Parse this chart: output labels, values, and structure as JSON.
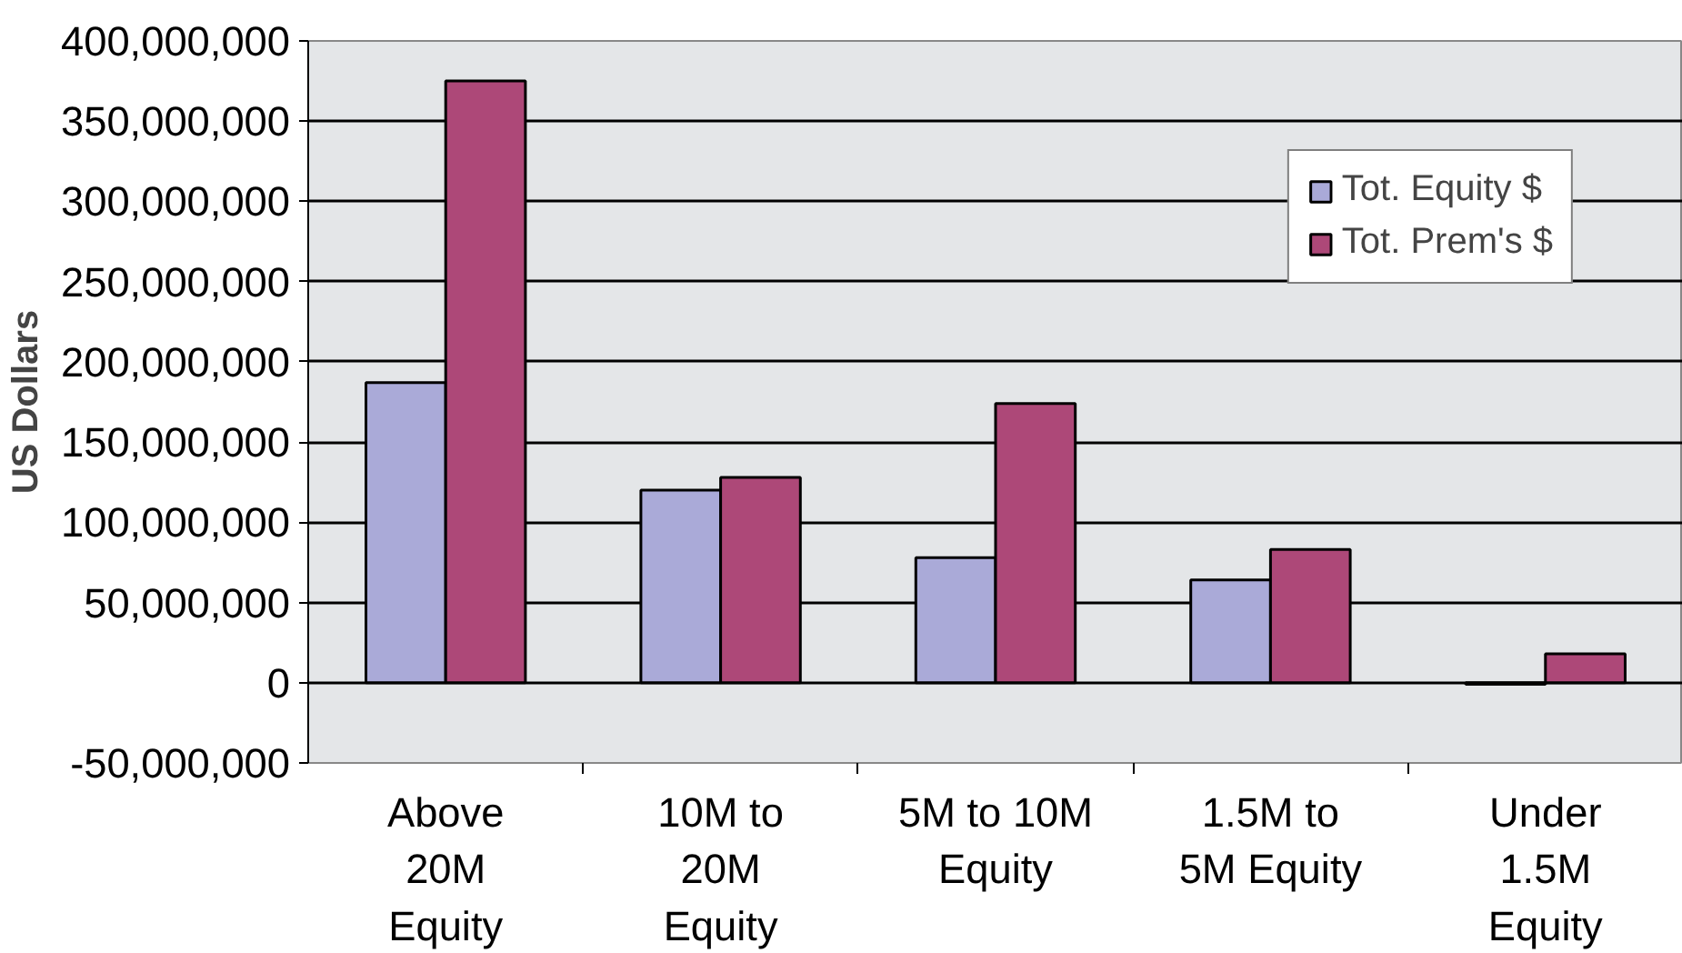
{
  "chart_data": {
    "type": "bar",
    "ylabel": "US Dollars",
    "categories": [
      "Above\n20M\nEquity",
      "10M to\n20M\nEquity",
      "5M to 10M\nEquity",
      "1.5M to\n5M Equity",
      "Under\n1.5M\nEquity"
    ],
    "series": [
      {
        "name": "Tot. Equity $",
        "color": "#aaaad8",
        "values": [
          187000000,
          120000000,
          78000000,
          64000000,
          -1000000
        ]
      },
      {
        "name": "Tot. Prem's $",
        "color": "#ad4878",
        "values": [
          375000000,
          128000000,
          174000000,
          83000000,
          18000000
        ]
      }
    ],
    "ylim": [
      -50000000,
      400000000
    ],
    "yticks": [
      {
        "value": -50000000,
        "label": "-50,000,000"
      },
      {
        "value": 0,
        "label": "0"
      },
      {
        "value": 50000000,
        "label": "50,000,000"
      },
      {
        "value": 100000000,
        "label": "100,000,000"
      },
      {
        "value": 150000000,
        "label": "150,000,000"
      },
      {
        "value": 200000000,
        "label": "200,000,000"
      },
      {
        "value": 250000000,
        "label": "250,000,000"
      },
      {
        "value": 300000000,
        "label": "300,000,000"
      },
      {
        "value": 350000000,
        "label": "350,000,000"
      },
      {
        "value": 400000000,
        "label": "400,000,000"
      }
    ],
    "grid": "y",
    "legend": "top right"
  }
}
